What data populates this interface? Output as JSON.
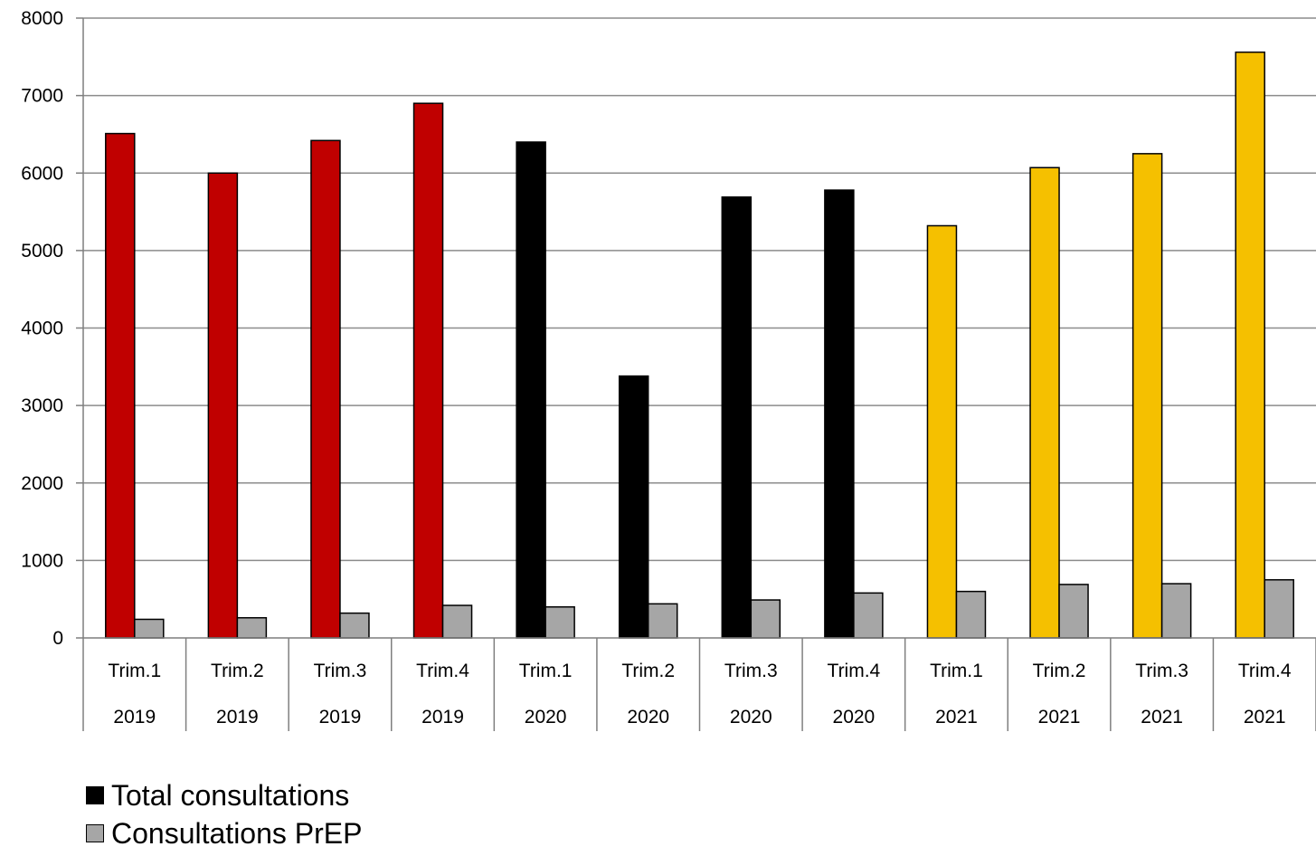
{
  "chart_data": {
    "type": "bar",
    "ylim": [
      0,
      8000
    ],
    "yticks": [
      0,
      1000,
      2000,
      3000,
      4000,
      5000,
      6000,
      7000,
      8000
    ],
    "grid": true,
    "categories": [
      {
        "quarter": "Trim.1",
        "year": "2019"
      },
      {
        "quarter": "Trim.2",
        "year": "2019"
      },
      {
        "quarter": "Trim.3",
        "year": "2019"
      },
      {
        "quarter": "Trim.4",
        "year": "2019"
      },
      {
        "quarter": "Trim.1",
        "year": "2020"
      },
      {
        "quarter": "Trim.2",
        "year": "2020"
      },
      {
        "quarter": "Trim.3",
        "year": "2020"
      },
      {
        "quarter": "Trim.4",
        "year": "2020"
      },
      {
        "quarter": "Trim.1",
        "year": "2021"
      },
      {
        "quarter": "Trim.2",
        "year": "2021"
      },
      {
        "quarter": "Trim.3",
        "year": "2021"
      },
      {
        "quarter": "Trim.4",
        "year": "2021"
      }
    ],
    "series": [
      {
        "name": "Total consultations",
        "values": [
          6510,
          6000,
          6420,
          6900,
          6400,
          3380,
          5690,
          5780,
          5320,
          6070,
          6250,
          7560
        ],
        "colors": [
          "#c00000",
          "#c00000",
          "#c00000",
          "#c00000",
          "#000000",
          "#000000",
          "#000000",
          "#000000",
          "#f5c000",
          "#f5c000",
          "#f5c000",
          "#f5c000"
        ],
        "legend_color": "#000000"
      },
      {
        "name": "Consultations PrEP",
        "values": [
          240,
          260,
          320,
          420,
          400,
          440,
          490,
          580,
          600,
          690,
          700,
          750
        ],
        "colors": [
          "#a6a6a6"
        ],
        "legend_color": "#a6a6a6"
      }
    ],
    "legend_position": "bottom-left"
  }
}
